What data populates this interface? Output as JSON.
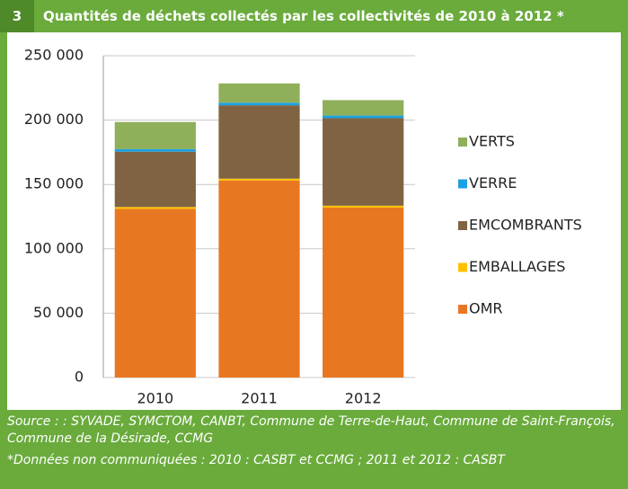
{
  "badge": "3",
  "footer": {
    "source": "Source : : SYVADE, SYMCTOM, CANBT, Commune de Terre-de-Haut, Commune de Saint-François, Commune de la Désirade, CCMG",
    "note": "*Données non communiquées : 2010 : CASBT et CCMG ; 2011 et 2012 : CASBT"
  },
  "chart_data": {
    "type": "stacked_bar",
    "title": "Quantités de déchets collectés par les collectivités de 2010 à 2012 *",
    "categories": [
      "2010",
      "2011",
      "2012"
    ],
    "series": [
      {
        "name": "OMR",
        "color": "#e87722",
        "values": [
          131000,
          153000,
          132000
        ]
      },
      {
        "name": "EMBALLAGES",
        "color": "#ffc000",
        "values": [
          1500,
          1500,
          1500
        ]
      },
      {
        "name": "EMCOMBRANTS",
        "color": "#7f6343",
        "values": [
          43000,
          57000,
          68000
        ]
      },
      {
        "name": "VERRE",
        "color": "#1ba1e2",
        "values": [
          2000,
          2000,
          2000
        ]
      },
      {
        "name": "VERTS",
        "color": "#8faf5a",
        "values": [
          21000,
          15000,
          12000
        ]
      }
    ],
    "ylim": [
      0,
      250000
    ],
    "yticks": [
      0,
      {
        "value": 50000,
        "label": "50 000"
      },
      {
        "value": 100000,
        "label": "100 000"
      },
      {
        "value": 150000,
        "label": "150 000"
      },
      {
        "value": 200000,
        "label": "200 000"
      },
      {
        "value": 250000,
        "label": "250 000"
      }
    ],
    "grid": true,
    "legend": "right"
  }
}
